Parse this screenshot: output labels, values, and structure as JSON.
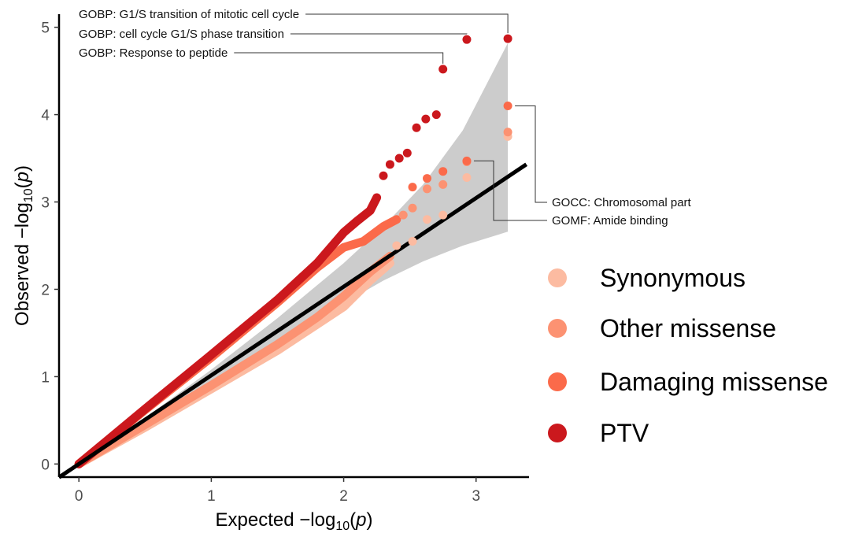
{
  "chart_data": {
    "type": "scatter",
    "xlim": [
      -0.15,
      3.4
    ],
    "ylim": [
      -0.15,
      5.15
    ],
    "x_ticks": [
      0,
      1,
      2,
      3
    ],
    "y_ticks": [
      0,
      1,
      2,
      3,
      4,
      5
    ],
    "x_tick_labels": [
      "0",
      "1",
      "2",
      "3"
    ],
    "y_tick_labels": [
      "0",
      "1",
      "2",
      "3",
      "4",
      "5"
    ],
    "xlabel": {
      "pre": "Expected −log",
      "sub": "10",
      "post": "(",
      "var": "p",
      "close": ")"
    },
    "ylabel": {
      "pre": "Observed −log",
      "sub": "10",
      "post": "(",
      "var": "p",
      "close": ")"
    },
    "reference_line": {
      "slope": 1.015,
      "intercept": 0.0,
      "color": "#000000"
    },
    "confidence_band": {
      "color": "#cccccc",
      "upper": [
        [
          0,
          0
        ],
        [
          0.5,
          0.53
        ],
        [
          1.0,
          1.08
        ],
        [
          1.5,
          1.67
        ],
        [
          2.0,
          2.3
        ],
        [
          2.3,
          2.72
        ],
        [
          2.6,
          3.2
        ],
        [
          2.9,
          3.82
        ],
        [
          3.24,
          4.82
        ]
      ],
      "lower": [
        [
          0,
          0
        ],
        [
          0.5,
          0.48
        ],
        [
          1.0,
          0.94
        ],
        [
          1.5,
          1.39
        ],
        [
          2.0,
          1.84
        ],
        [
          2.3,
          2.1
        ],
        [
          2.6,
          2.32
        ],
        [
          2.9,
          2.5
        ],
        [
          3.24,
          2.66
        ]
      ]
    },
    "series": [
      {
        "name": "Synonymous",
        "color": "#fcbba1",
        "trend": [
          [
            0,
            0
          ],
          [
            0.5,
            0.42
          ],
          [
            1.0,
            0.86
          ],
          [
            1.5,
            1.3
          ],
          [
            1.8,
            1.6
          ],
          [
            2.0,
            1.8
          ],
          [
            2.2,
            2.1
          ],
          [
            2.35,
            2.3
          ]
        ],
        "points": [
          [
            2.4,
            2.5
          ],
          [
            2.52,
            2.55
          ],
          [
            2.63,
            2.8
          ],
          [
            2.75,
            2.85
          ],
          [
            2.93,
            3.28
          ],
          [
            3.24,
            3.75
          ]
        ]
      },
      {
        "name": "Other missense",
        "color": "#fc9272",
        "trend": [
          [
            0,
            0
          ],
          [
            0.5,
            0.45
          ],
          [
            1.0,
            0.9
          ],
          [
            1.5,
            1.37
          ],
          [
            1.8,
            1.68
          ],
          [
            2.0,
            1.92
          ],
          [
            2.2,
            2.2
          ],
          [
            2.35,
            2.38
          ]
        ],
        "points": [
          [
            2.45,
            2.85
          ],
          [
            2.52,
            2.93
          ],
          [
            2.63,
            3.15
          ],
          [
            2.75,
            3.2
          ],
          [
            2.93,
            3.46
          ],
          [
            3.24,
            3.8
          ]
        ]
      },
      {
        "name": "Damaging missense",
        "color": "#fb6a4a",
        "trend": [
          [
            0,
            0
          ],
          [
            0.5,
            0.62
          ],
          [
            1.0,
            1.22
          ],
          [
            1.5,
            1.85
          ],
          [
            1.8,
            2.25
          ],
          [
            2.0,
            2.48
          ],
          [
            2.15,
            2.55
          ],
          [
            2.3,
            2.72
          ],
          [
            2.4,
            2.8
          ]
        ],
        "points": [
          [
            2.52,
            3.17
          ],
          [
            2.63,
            3.27
          ],
          [
            2.75,
            3.35
          ],
          [
            2.93,
            3.47
          ],
          [
            3.24,
            4.1
          ]
        ]
      },
      {
        "name": "PTV",
        "color": "#cb181d",
        "trend": [
          [
            0,
            0
          ],
          [
            0.5,
            0.63
          ],
          [
            1.0,
            1.25
          ],
          [
            1.5,
            1.88
          ],
          [
            1.8,
            2.3
          ],
          [
            2.0,
            2.65
          ],
          [
            2.1,
            2.78
          ],
          [
            2.2,
            2.9
          ],
          [
            2.25,
            3.05
          ]
        ],
        "points": [
          [
            2.3,
            3.3
          ],
          [
            2.35,
            3.43
          ],
          [
            2.42,
            3.5
          ],
          [
            2.48,
            3.56
          ],
          [
            2.55,
            3.85
          ],
          [
            2.62,
            3.95
          ],
          [
            2.7,
            4.0
          ],
          [
            2.75,
            4.52
          ],
          [
            2.93,
            4.86
          ],
          [
            3.24,
            4.87
          ]
        ]
      }
    ],
    "annotations": [
      {
        "text": "GOBP: G1/S transition of mitotic cell cycle",
        "x": 3.24,
        "y": 4.87,
        "side": "left"
      },
      {
        "text": "GOBP: cell cycle G1/S phase transition",
        "x": 2.93,
        "y": 4.86,
        "side": "left"
      },
      {
        "text": "GOBP: Response to peptide",
        "x": 2.75,
        "y": 4.52,
        "side": "left"
      },
      {
        "text": "GOCC: Chromosomal part",
        "x": 3.24,
        "y": 4.1,
        "side": "right"
      },
      {
        "text": "GOMF: Amide binding",
        "x": 2.93,
        "y": 3.47,
        "side": "right"
      }
    ],
    "legend": {
      "position": "right",
      "entries": [
        {
          "label": "Synonymous",
          "color": "#fcbba1"
        },
        {
          "label": "Other missense",
          "color": "#fc9272"
        },
        {
          "label": "Damaging missense",
          "color": "#fb6a4a"
        },
        {
          "label": "PTV",
          "color": "#cb181d"
        }
      ]
    },
    "grid": false
  }
}
